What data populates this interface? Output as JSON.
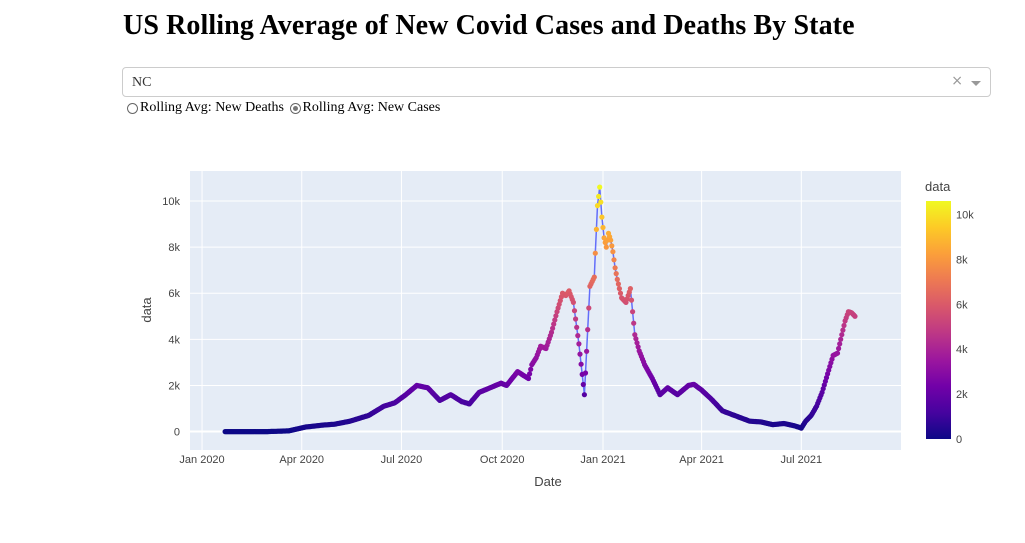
{
  "header": {
    "title": "US Rolling Average of New Covid Cases and Deaths By State"
  },
  "state_select": {
    "value": "NC",
    "clear_symbol": "×"
  },
  "metric_radios": [
    {
      "label": "Rolling Avg: New Deaths",
      "checked": false
    },
    {
      "label": "Rolling Avg: New Cases",
      "checked": true
    }
  ],
  "colors": {
    "line": "#636efa",
    "plot_bg": "#e5ecf6",
    "colorscale": [
      "#0d0887",
      "#46039f",
      "#7201a8",
      "#9c179e",
      "#bd3786",
      "#d8576b",
      "#ed7953",
      "#fb9f3a",
      "#fdca26",
      "#f0f921"
    ]
  },
  "chart_data": {
    "type": "scatter",
    "mode": "lines+markers",
    "xlabel": "Date",
    "ylabel": "data",
    "xlim": [
      "2019-12-21",
      "2021-09-30"
    ],
    "ylim": [
      -800,
      11300
    ],
    "x_ticks": [
      {
        "date": "2020-01-01",
        "label": "Jan 2020"
      },
      {
        "date": "2020-04-01",
        "label": "Apr 2020"
      },
      {
        "date": "2020-07-01",
        "label": "Jul 2020"
      },
      {
        "date": "2020-10-01",
        "label": "Oct 2020"
      },
      {
        "date": "2021-01-01",
        "label": "Jan 2021"
      },
      {
        "date": "2021-04-01",
        "label": "Apr 2021"
      },
      {
        "date": "2021-07-01",
        "label": "Jul 2021"
      }
    ],
    "y_ticks": [
      {
        "value": 0,
        "label": "0"
      },
      {
        "value": 2000,
        "label": "2k"
      },
      {
        "value": 4000,
        "label": "4k"
      },
      {
        "value": 6000,
        "label": "6k"
      },
      {
        "value": 8000,
        "label": "8k"
      },
      {
        "value": 10000,
        "label": "10k"
      }
    ],
    "colorbar": {
      "title": "data",
      "range": [
        0,
        10600
      ],
      "ticks": [
        {
          "value": 0,
          "label": "0"
        },
        {
          "value": 2000,
          "label": "2k"
        },
        {
          "value": 4000,
          "label": "4k"
        },
        {
          "value": 6000,
          "label": "6k"
        },
        {
          "value": 8000,
          "label": "8k"
        },
        {
          "value": 10000,
          "label": "10k"
        }
      ]
    },
    "grid": true,
    "legend": "none",
    "series": [
      {
        "x": [
          "2020-01-22",
          "2020-03-01",
          "2020-03-20",
          "2020-04-05",
          "2020-04-20",
          "2020-05-01",
          "2020-05-15",
          "2020-06-01",
          "2020-06-15",
          "2020-06-25",
          "2020-07-05",
          "2020-07-15",
          "2020-07-25",
          "2020-08-05",
          "2020-08-15",
          "2020-08-25",
          "2020-09-01",
          "2020-09-10",
          "2020-09-20",
          "2020-09-30",
          "2020-10-05",
          "2020-10-15",
          "2020-10-25",
          "2020-10-28",
          "2020-11-01",
          "2020-11-05",
          "2020-11-10",
          "2020-11-15",
          "2020-11-20",
          "2020-11-25",
          "2020-11-28",
          "2020-12-01",
          "2020-12-05",
          "2020-12-10",
          "2020-12-15",
          "2020-12-20",
          "2020-12-24",
          "2020-12-27",
          "2020-12-29",
          "2020-12-31",
          "2021-01-02",
          "2021-01-04",
          "2021-01-06",
          "2021-01-08",
          "2021-01-10",
          "2021-01-12",
          "2021-01-14",
          "2021-01-18",
          "2021-01-22",
          "2021-01-26",
          "2021-01-30",
          "2021-02-03",
          "2021-02-08",
          "2021-02-15",
          "2021-02-22",
          "2021-03-01",
          "2021-03-10",
          "2021-03-20",
          "2021-03-25",
          "2021-04-01",
          "2021-04-10",
          "2021-04-20",
          "2021-05-01",
          "2021-05-15",
          "2021-05-25",
          "2021-06-05",
          "2021-06-15",
          "2021-06-25",
          "2021-07-01",
          "2021-07-05",
          "2021-07-10",
          "2021-07-15",
          "2021-07-20",
          "2021-07-25",
          "2021-07-30",
          "2021-08-03",
          "2021-08-07",
          "2021-08-10",
          "2021-08-13",
          "2021-08-16",
          "2021-08-19"
        ],
        "y": [
          0,
          0,
          30,
          200,
          280,
          320,
          450,
          700,
          1100,
          1250,
          1600,
          2000,
          1900,
          1350,
          1600,
          1300,
          1200,
          1700,
          1900,
          2100,
          2000,
          2600,
          2300,
          2900,
          3200,
          3700,
          3600,
          4300,
          5200,
          6000,
          5900,
          6100,
          5600,
          3800,
          1600,
          6300,
          6700,
          9800,
          10600,
          9300,
          8400,
          8000,
          8600,
          8300,
          7800,
          7100,
          6600,
          5800,
          5600,
          6200,
          4200,
          3500,
          2900,
          2300,
          1600,
          1900,
          1600,
          2000,
          2050,
          1800,
          1400,
          900,
          700,
          450,
          420,
          300,
          350,
          250,
          150,
          450,
          700,
          1100,
          1700,
          2500,
          3300,
          3400,
          4200,
          4800,
          5200,
          5150,
          5000
        ]
      }
    ]
  }
}
